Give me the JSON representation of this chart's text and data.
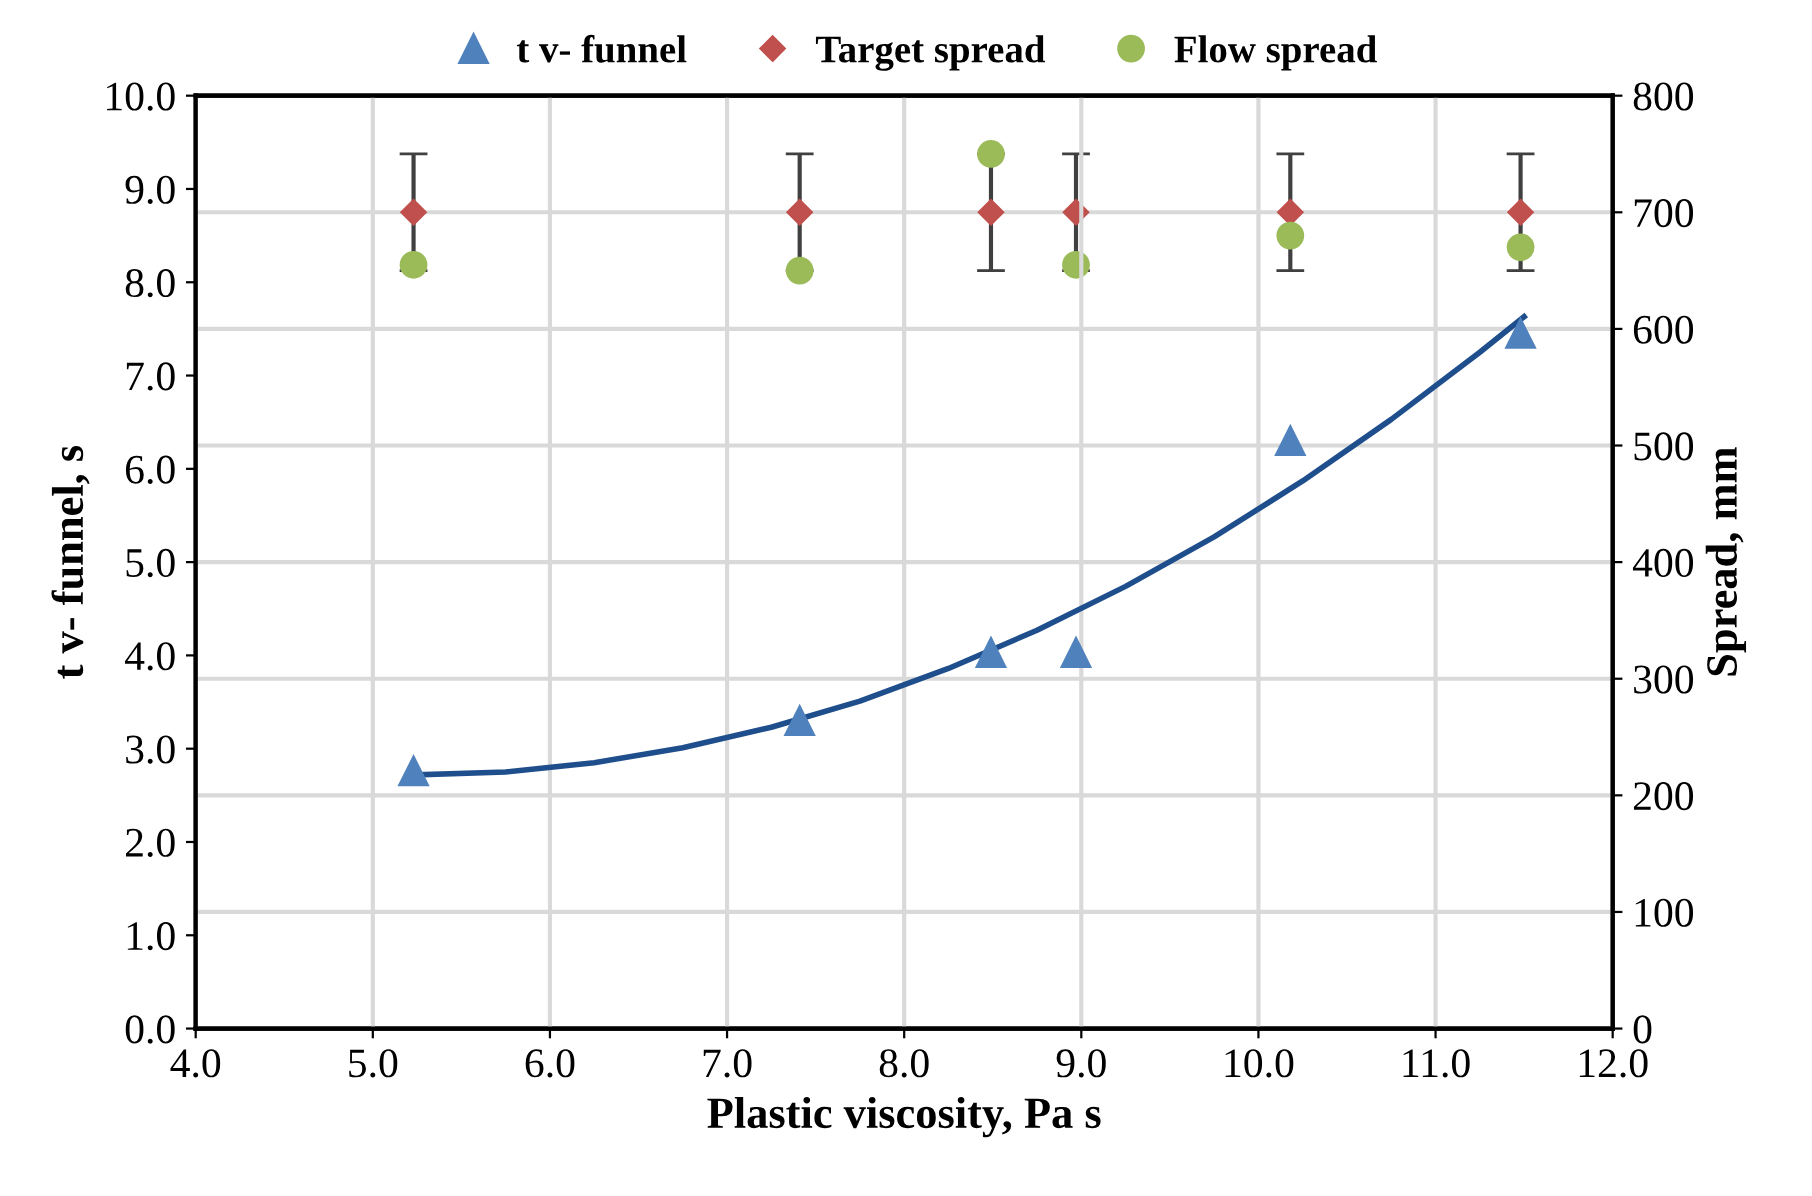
{
  "chart_data": {
    "type": "scatter",
    "xlabel": "Plastic viscosity, Pa s",
    "ylabel": "t v- funnel, s",
    "y2label": "Spread, mm",
    "xlim": [
      4.0,
      12.0
    ],
    "xticks": [
      {
        "value": 4,
        "label": "4.0"
      },
      {
        "value": 5,
        "label": "5.0"
      },
      {
        "value": 6,
        "label": "6.0"
      },
      {
        "value": 7,
        "label": "7.0"
      },
      {
        "value": 8,
        "label": "8.0"
      },
      {
        "value": 9,
        "label": "9.0"
      },
      {
        "value": 10,
        "label": "10.0"
      },
      {
        "value": 11,
        "label": "11.0"
      },
      {
        "value": 12,
        "label": "12.0"
      }
    ],
    "ylim": [
      0,
      10
    ],
    "yticks": [
      {
        "value": 0,
        "label": "0.0"
      },
      {
        "value": 1,
        "label": "1.0"
      },
      {
        "value": 2,
        "label": "2.0"
      },
      {
        "value": 3,
        "label": "3.0"
      },
      {
        "value": 4,
        "label": "4.0"
      },
      {
        "value": 5,
        "label": "5.0"
      },
      {
        "value": 6,
        "label": "6.0"
      },
      {
        "value": 7,
        "label": "7.0"
      },
      {
        "value": 8,
        "label": "8.0"
      },
      {
        "value": 9,
        "label": "9.0"
      },
      {
        "value": 10,
        "label": "10.0"
      }
    ],
    "y2lim": [
      0,
      800
    ],
    "y2ticks": [
      0,
      100,
      200,
      300,
      400,
      500,
      600,
      700,
      800
    ],
    "grid": true,
    "legend": "top",
    "series": [
      {
        "name": "t v- funnel",
        "marker": "triangle",
        "color": "#4f81bd",
        "x": [
          5.23,
          7.41,
          8.49,
          8.97,
          10.18,
          11.48
        ],
        "values": [
          2.76,
          3.3,
          4.03,
          4.03,
          6.3,
          7.45
        ]
      },
      {
        "type": "line",
        "color": "#1f4e8c",
        "marker": "none",
        "x": [
          5.25,
          5.75,
          6.25,
          6.75,
          7.25,
          7.75,
          8.25,
          8.75,
          9.25,
          9.75,
          10.25,
          10.75,
          11.25,
          11.5
        ],
        "values": [
          2.72,
          2.75,
          2.85,
          3.01,
          3.23,
          3.51,
          3.86,
          4.27,
          4.74,
          5.27,
          5.87,
          6.53,
          7.25,
          7.63
        ]
      },
      {
        "name": "Target spread",
        "marker": "diamond",
        "axis": "y2",
        "color": "#c0504d",
        "x": [
          5.23,
          7.41,
          8.49,
          8.97,
          10.18,
          11.48
        ],
        "values": [
          700,
          700,
          700,
          700,
          700,
          700
        ],
        "errors": [
          50,
          50,
          50,
          50,
          50,
          50
        ]
      },
      {
        "name": "Flow spread",
        "marker": "circle",
        "axis": "y2",
        "color": "#9bbb59",
        "x": [
          5.23,
          7.41,
          8.49,
          8.97,
          10.18,
          11.48
        ],
        "values": [
          655,
          650,
          750,
          655,
          680,
          670
        ]
      }
    ]
  }
}
